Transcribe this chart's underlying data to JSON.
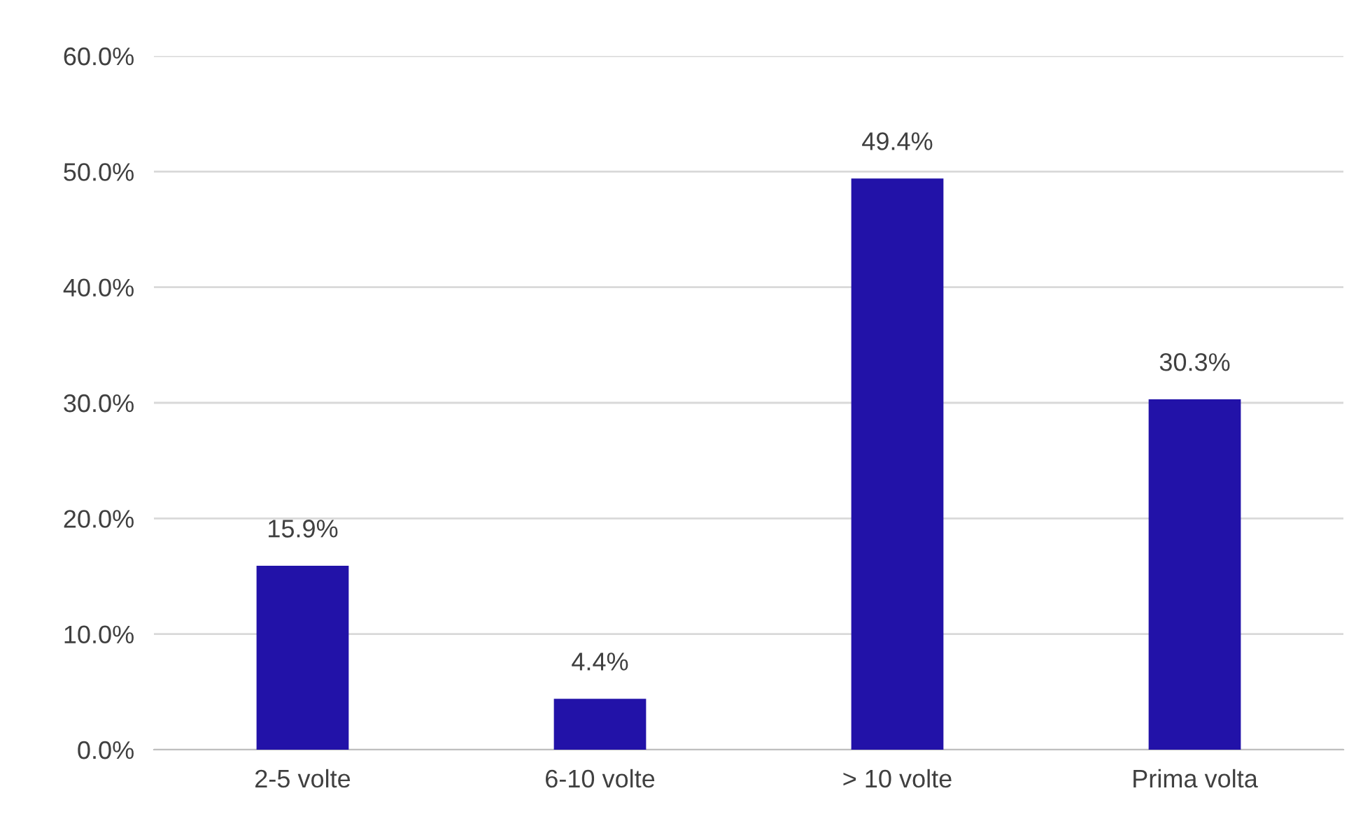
{
  "chart_data": {
    "type": "bar",
    "categories": [
      "2-5 volte",
      "6-10 volte",
      "> 10 volte",
      "Prima volta"
    ],
    "values": [
      15.9,
      4.4,
      49.4,
      30.3
    ],
    "value_labels": [
      "15.9%",
      "4.4%",
      "49.4%",
      "30.3%"
    ],
    "color": "#2212a8",
    "ylim": [
      0,
      60
    ],
    "yticks": [
      {
        "value": 0,
        "label": "0.0%"
      },
      {
        "value": 10,
        "label": "10.0%"
      },
      {
        "value": 20,
        "label": "20.0%"
      },
      {
        "value": 30,
        "label": "30.0%"
      },
      {
        "value": 40,
        "label": "40.0%"
      },
      {
        "value": 50,
        "label": "50.0%"
      },
      {
        "value": 60,
        "label": "60.0%"
      }
    ],
    "grid": "y"
  }
}
